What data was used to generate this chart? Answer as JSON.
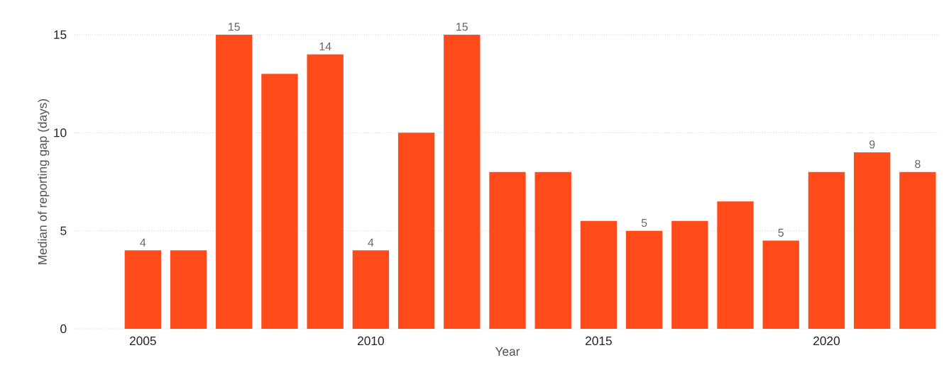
{
  "chart_data": {
    "type": "bar",
    "xlabel": "Year",
    "ylabel": "Median of reporting gap (days)",
    "x": [
      2005,
      2006,
      2007,
      2008,
      2009,
      2010,
      2011,
      2012,
      2013,
      2014,
      2015,
      2016,
      2017,
      2018,
      2019,
      2020,
      2021,
      2022
    ],
    "values": [
      4,
      4,
      15,
      13,
      14,
      4,
      10,
      15,
      8,
      8,
      5.5,
      5,
      5.5,
      6.5,
      4.5,
      8,
      9,
      8
    ],
    "value_labels": [
      "4",
      null,
      "15",
      null,
      "14",
      "4",
      null,
      "15",
      null,
      null,
      null,
      "5",
      null,
      null,
      "5",
      null,
      "9",
      "8"
    ],
    "color": "#ff4a1a",
    "xlim": [
      2003.5,
      2022.5
    ],
    "xticks": [
      2005,
      2010,
      2015,
      2020
    ],
    "ylim": [
      0,
      15
    ],
    "yticks": [
      0,
      5,
      10,
      15
    ],
    "grid": "y"
  }
}
